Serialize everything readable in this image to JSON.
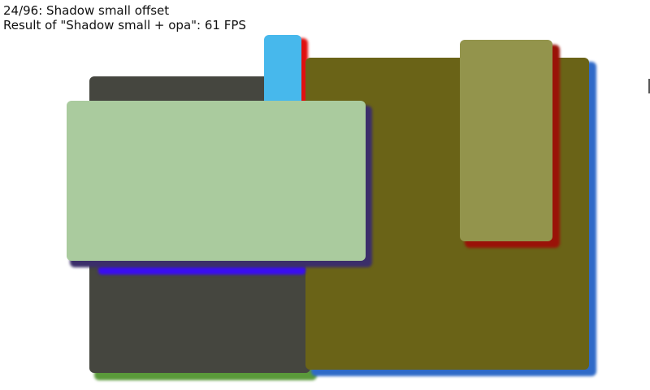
{
  "header": {
    "title": "24/96: Shadow small offset",
    "result": "Result of \"Shadow small + opa\": 61 FPS"
  },
  "colors": {
    "dark_gray": "#45463f",
    "green_shadow": "#5a9a3a",
    "sky_blue": "#47b8ec",
    "red_shadow": "#e01010",
    "olive": "#6a6317",
    "blue_shadow": "#2f6ac8",
    "light_green": "#aacb9e",
    "purple_shadow": "#3b2e6a",
    "violet_strip": "#3a0ef0",
    "khaki": "#93944c",
    "dark_red_shadow": "#9a1208"
  }
}
